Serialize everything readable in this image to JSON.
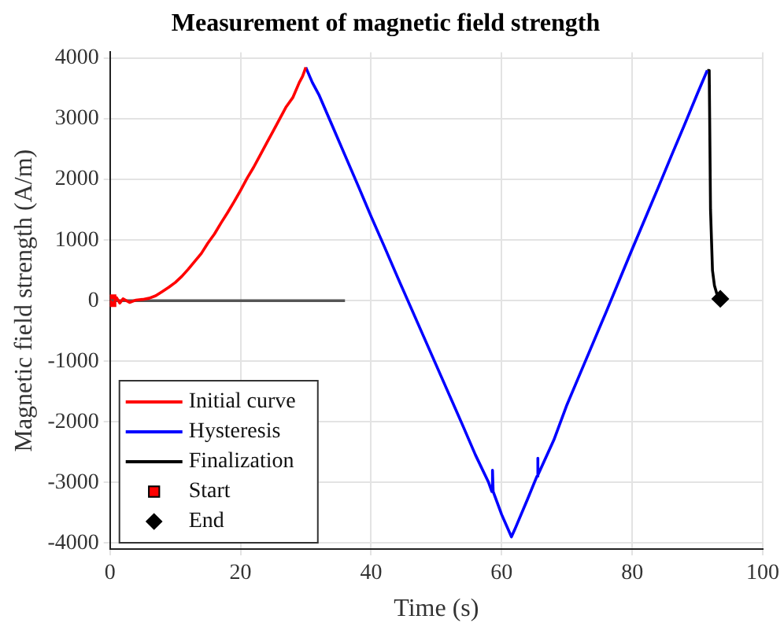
{
  "chart_data": {
    "type": "line",
    "title": "Measurement of magnetic field strength",
    "xlabel": "Time (s)",
    "ylabel": "Magnetic field strength (A/m)",
    "xlim": [
      0,
      100
    ],
    "xticks": [
      0,
      20,
      40,
      60,
      80,
      100
    ],
    "ylim": [
      -4100,
      4100
    ],
    "yticks": [
      -4000,
      -3000,
      -2000,
      -1000,
      0,
      1000,
      2000,
      3000,
      4000
    ],
    "grid": true,
    "legend": "bottom left",
    "series": [
      {
        "name": "Initial curve",
        "color": "#ff0000",
        "x": [
          0,
          0.5,
          1,
          1.5,
          2,
          3,
          4,
          5,
          6,
          7,
          8,
          9,
          10,
          11,
          12,
          13,
          14,
          15,
          16,
          17,
          18,
          19,
          20,
          21,
          22,
          23,
          24,
          25,
          26,
          27,
          28,
          29,
          29.5,
          30
        ],
        "values": [
          0,
          -60,
          50,
          -40,
          30,
          -30,
          10,
          20,
          40,
          80,
          150,
          220,
          300,
          400,
          520,
          650,
          780,
          950,
          1100,
          1280,
          1450,
          1630,
          1820,
          2020,
          2200,
          2400,
          2600,
          2800,
          3000,
          3200,
          3350,
          3600,
          3700,
          3850
        ]
      },
      {
        "name": "Hysteresis",
        "color": "#0000ff",
        "x": [
          30,
          31,
          32,
          34,
          36,
          38,
          40,
          42,
          44,
          46,
          48,
          50,
          52,
          54,
          56,
          58,
          58.5,
          58.6,
          58.7,
          60,
          61.5,
          62,
          64,
          65.4,
          65.5,
          65.6,
          68,
          70,
          72,
          74,
          76,
          78,
          80,
          82,
          84,
          86,
          88,
          90,
          91.5
        ],
        "values": [
          3850,
          3600,
          3400,
          2900,
          2400,
          1900,
          1390,
          900,
          400,
          -90,
          -580,
          -1070,
          -1560,
          -2050,
          -2550,
          -3000,
          -3150,
          -2800,
          -3150,
          -3530,
          -3900,
          -3780,
          -3270,
          -2900,
          -2600,
          -2880,
          -2300,
          -1720,
          -1210,
          -700,
          -190,
          330,
          850,
          1360,
          1870,
          2390,
          2900,
          3420,
          3800
        ]
      },
      {
        "name": "Finalization",
        "color": "#000000",
        "x": [
          91.5,
          91.8,
          92,
          92.3,
          92.6,
          93,
          93.5
        ],
        "values": [
          3800,
          3800,
          1500,
          500,
          250,
          100,
          30
        ]
      },
      {
        "color": "#555555",
        "x": [
          0,
          36
        ],
        "values": [
          0,
          0
        ]
      },
      {
        "name": "Start",
        "type": "scatter",
        "marker": "square",
        "color": "#ff0000",
        "x": [
          0
        ],
        "values": [
          0
        ]
      },
      {
        "name": "End",
        "type": "scatter",
        "marker": "diamond",
        "color": "#000000",
        "x": [
          93.5
        ],
        "values": [
          30
        ]
      }
    ]
  }
}
